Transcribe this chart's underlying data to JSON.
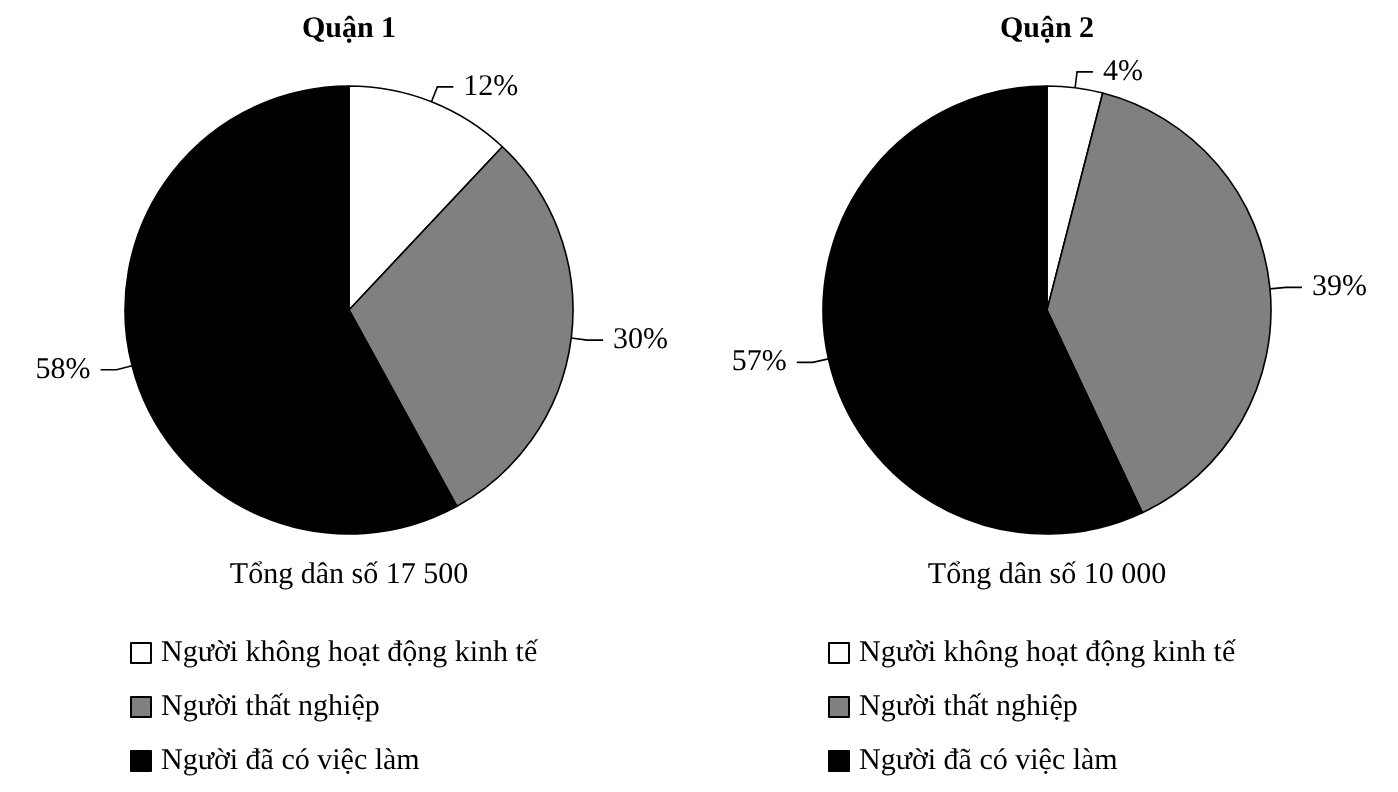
{
  "chart_data": [
    {
      "type": "pie",
      "title": "Quận 1",
      "categories": [
        "Người không hoạt động kinh tế",
        "Người thất nghiệp",
        "Người đã có việc làm"
      ],
      "values": [
        12,
        30,
        58
      ],
      "colors": [
        "#ffffff",
        "#808080",
        "#000000"
      ],
      "value_labels": [
        "12%",
        "30%",
        "58%"
      ],
      "annotations": [
        "Tổng dân số 17 500"
      ],
      "legend": "bottom"
    },
    {
      "type": "pie",
      "title": "Quận 2",
      "categories": [
        "Người không hoạt động kinh tế",
        "Người thất nghiệp",
        "Người đã có việc làm"
      ],
      "values": [
        4,
        39,
        57
      ],
      "colors": [
        "#ffffff",
        "#808080",
        "#000000"
      ],
      "value_labels": [
        "4%",
        "39%",
        "57%"
      ],
      "annotations": [
        "Tổng dân số 10 000"
      ],
      "legend": "bottom"
    }
  ]
}
